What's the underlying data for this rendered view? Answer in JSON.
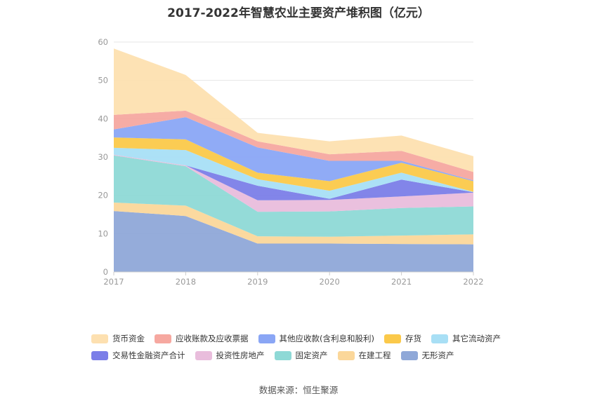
{
  "chart_data": {
    "type": "area",
    "stacked": true,
    "title": "2017-2022年智慧农业主要资产堆积图（亿元）",
    "categories": [
      "2017",
      "2018",
      "2019",
      "2020",
      "2021",
      "2022"
    ],
    "ylim": [
      0,
      60
    ],
    "yticks": [
      0,
      10,
      20,
      30,
      40,
      50,
      60
    ],
    "grid": true,
    "legend_position": "bottom",
    "series": [
      {
        "name": "无形资产",
        "color": "#8fa8d8",
        "values": [
          15.9,
          14.6,
          7.4,
          7.4,
          7.3,
          7.2
        ]
      },
      {
        "name": "在建工程",
        "color": "#fbd79a",
        "values": [
          2.2,
          2.7,
          1.9,
          1.8,
          2.2,
          2.6
        ]
      },
      {
        "name": "固定资产",
        "color": "#8ed9d6",
        "values": [
          12.3,
          10.3,
          6.4,
          6.6,
          7.2,
          7.3
        ]
      },
      {
        "name": "投资性房地产",
        "color": "#e9bddc",
        "values": [
          0.2,
          0.2,
          3.0,
          3.0,
          3.0,
          3.6
        ]
      },
      {
        "name": "交易性金融资产合计",
        "color": "#7b7ee8",
        "values": [
          0.0,
          0.0,
          3.8,
          0.3,
          4.4,
          0.1
        ]
      },
      {
        "name": "其它流动资产",
        "color": "#a8dff5",
        "values": [
          1.8,
          4.0,
          1.7,
          2.1,
          1.8,
          0.1
        ]
      },
      {
        "name": "存货",
        "color": "#fbc94a",
        "values": [
          2.7,
          2.8,
          1.7,
          2.5,
          2.6,
          2.8
        ]
      },
      {
        "name": "其他应收款(含利息和股利)",
        "color": "#8aa6f5",
        "values": [
          2.1,
          5.8,
          6.6,
          5.3,
          0.5,
          0.2
        ]
      },
      {
        "name": "应收账款及应收票据",
        "color": "#f6a8a0",
        "values": [
          3.8,
          1.7,
          1.6,
          1.7,
          2.6,
          2.2
        ]
      },
      {
        "name": "货币资金",
        "color": "#fde0b0",
        "values": [
          17.3,
          9.3,
          2.2,
          3.4,
          4.0,
          4.1
        ]
      }
    ]
  },
  "legend_rows": [
    [
      {
        "label": "货币资金",
        "color": "#fde0b0"
      },
      {
        "label": "应收账款及应收票据",
        "color": "#f6a8a0"
      },
      {
        "label": "其他应收款(含利息和股利)",
        "color": "#8aa6f5"
      },
      {
        "label": "存货",
        "color": "#fbc94a"
      },
      {
        "label": "其它流动资产",
        "color": "#a8dff5"
      }
    ],
    [
      {
        "label": "交易性金融资产合计",
        "color": "#7b7ee8"
      },
      {
        "label": "投资性房地产",
        "color": "#e9bddc"
      },
      {
        "label": "固定资产",
        "color": "#8ed9d6"
      },
      {
        "label": "在建工程",
        "color": "#fbd79a"
      },
      {
        "label": "无形资产",
        "color": "#8fa8d8"
      }
    ]
  ],
  "source": "数据来源：恒生聚源"
}
